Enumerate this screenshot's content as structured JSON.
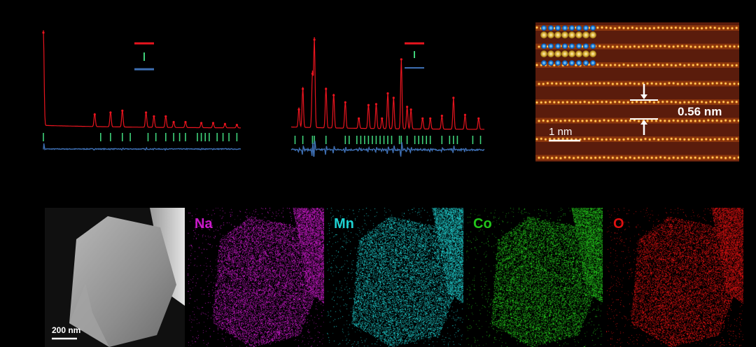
{
  "chart_data": [
    {
      "type": "line",
      "title": "",
      "xlabel": "",
      "ylabel": "",
      "legend": "top-center",
      "series": [
        {
          "color": "#e8141e",
          "peaks": [
            [
              0.0,
              1.0
            ],
            [
              0.26,
              0.14
            ],
            [
              0.34,
              0.16
            ],
            [
              0.4,
              0.18
            ],
            [
              0.52,
              0.16
            ],
            [
              0.56,
              0.12
            ],
            [
              0.62,
              0.12
            ],
            [
              0.66,
              0.06
            ],
            [
              0.72,
              0.06
            ],
            [
              0.8,
              0.05
            ],
            [
              0.86,
              0.05
            ],
            [
              0.92,
              0.04
            ],
            [
              0.98,
              0.03
            ]
          ]
        },
        {
          "color": "#3fd27a",
          "ticks": [
            0.0,
            0.29,
            0.34,
            0.4,
            0.44,
            0.53,
            0.57,
            0.62,
            0.66,
            0.69,
            0.72,
            0.78,
            0.8,
            0.82,
            0.84,
            0.88,
            0.91,
            0.94,
            0.98
          ]
        },
        {
          "color": "#3e6fb3"
        }
      ]
    },
    {
      "type": "line",
      "title": "",
      "xlabel": "",
      "ylabel": "",
      "legend": "top-right",
      "series": [
        {
          "color": "#e8141e",
          "peaks": [
            [
              0.04,
              0.22
            ],
            [
              0.06,
              0.45
            ],
            [
              0.11,
              0.62
            ],
            [
              0.12,
              1.0
            ],
            [
              0.18,
              0.45
            ],
            [
              0.22,
              0.38
            ],
            [
              0.28,
              0.3
            ],
            [
              0.35,
              0.12
            ],
            [
              0.4,
              0.27
            ],
            [
              0.44,
              0.28
            ],
            [
              0.47,
              0.12
            ],
            [
              0.5,
              0.4
            ],
            [
              0.53,
              0.35
            ],
            [
              0.57,
              0.78
            ],
            [
              0.6,
              0.25
            ],
            [
              0.62,
              0.22
            ],
            [
              0.68,
              0.12
            ],
            [
              0.72,
              0.12
            ],
            [
              0.78,
              0.15
            ],
            [
              0.84,
              0.35
            ],
            [
              0.9,
              0.16
            ],
            [
              0.97,
              0.12
            ]
          ]
        },
        {
          "color": "#3fd27a",
          "ticks": [
            0.02,
            0.06,
            0.11,
            0.12,
            0.18,
            0.28,
            0.3,
            0.34,
            0.36,
            0.38,
            0.4,
            0.42,
            0.44,
            0.46,
            0.48,
            0.5,
            0.52,
            0.56,
            0.57,
            0.6,
            0.64,
            0.66,
            0.68,
            0.7,
            0.72,
            0.78,
            0.82,
            0.84,
            0.86,
            0.94,
            0.98
          ]
        },
        {
          "color": "#3e6fb3"
        }
      ]
    }
  ],
  "stem": {
    "spacing_label": "0.56 nm",
    "scale_label": "1 nm"
  },
  "eds": {
    "scale_label": "200 nm",
    "maps": [
      {
        "element": "Na",
        "color": "#cc1acc"
      },
      {
        "element": "Mn",
        "color": "#1fd2d2"
      },
      {
        "element": "Co",
        "color": "#22c41a"
      },
      {
        "element": "O",
        "color": "#e01010"
      }
    ]
  }
}
